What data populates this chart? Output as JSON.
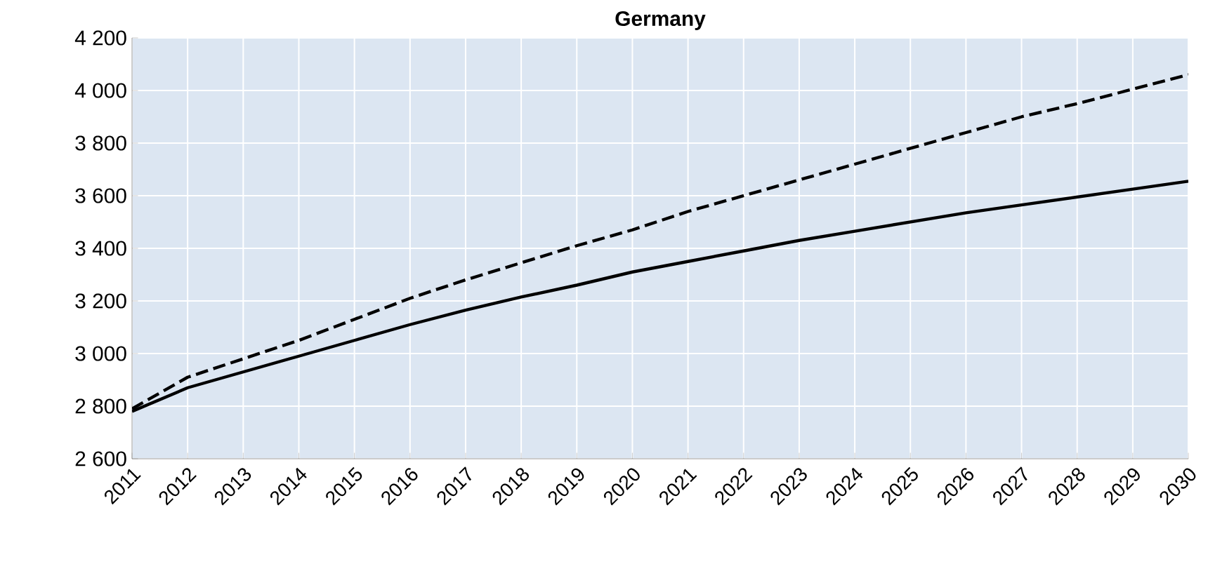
{
  "chart_data": {
    "type": "line",
    "title": "Germany",
    "categories": [
      "2011",
      "2012",
      "2013",
      "2014",
      "2015",
      "2016",
      "2017",
      "2018",
      "2019",
      "2020",
      "2021",
      "2022",
      "2023",
      "2024",
      "2025",
      "2026",
      "2027",
      "2028",
      "2029",
      "2030"
    ],
    "series": [
      {
        "color": "#000000",
        "line_style": "solid",
        "values": [
          2780,
          2870,
          2930,
          2990,
          3050,
          3110,
          3165,
          3215,
          3260,
          3310,
          3350,
          3390,
          3430,
          3465,
          3500,
          3535,
          3565,
          3595,
          3625,
          3655
        ]
      },
      {
        "color": "#000000",
        "line_style": "dashed",
        "values": [
          2790,
          2910,
          2980,
          3050,
          3130,
          3210,
          3280,
          3345,
          3410,
          3470,
          3540,
          3600,
          3660,
          3720,
          3780,
          3840,
          3900,
          3950,
          4005,
          4060
        ]
      }
    ],
    "ylim": [
      2600,
      4200
    ],
    "yticks": [
      {
        "value": 2600,
        "label": "2 600"
      },
      {
        "value": 2800,
        "label": "2 800"
      },
      {
        "value": 3000,
        "label": "3 000"
      },
      {
        "value": 3200,
        "label": "3 200"
      },
      {
        "value": 3400,
        "label": "3 400"
      },
      {
        "value": 3600,
        "label": "3 600"
      },
      {
        "value": 3800,
        "label": "3 800"
      },
      {
        "value": 4000,
        "label": "4 000"
      },
      {
        "value": 4200,
        "label": "4 200"
      }
    ],
    "grid": true,
    "marker": "none"
  }
}
